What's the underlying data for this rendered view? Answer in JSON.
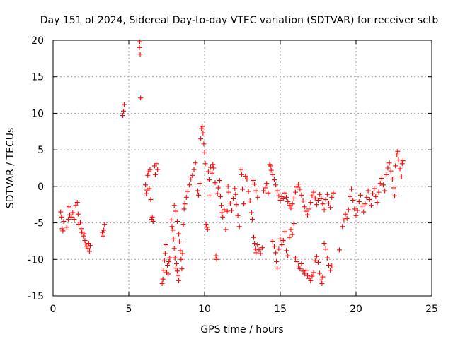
{
  "chart_data": {
    "type": "scatter",
    "title": "Day 151 of 2024, Sidereal Day-to-day VTEC variation (SDTVAR) for receiver sctb",
    "xlabel": "GPS time / hours",
    "ylabel": "SDTVAR / TECUs",
    "xlim": [
      0,
      25
    ],
    "ylim": [
      -15,
      20
    ],
    "xticks": [
      0,
      5,
      10,
      15,
      20,
      25
    ],
    "xtick_labels": [
      "0",
      "5",
      "10",
      "15",
      "20",
      "25"
    ],
    "yticks": [
      -15,
      -10,
      -5,
      0,
      5,
      10,
      15,
      20
    ],
    "ytick_labels": [
      "-15",
      "-10",
      "-5",
      "0",
      "5",
      "10",
      "15",
      "20"
    ],
    "grid": true,
    "marker": "plus",
    "series": [
      {
        "name": "SDTVAR",
        "color": "#ff0000",
        "points": [
          [
            0.5,
            -3.5
          ],
          [
            0.55,
            -4.2
          ],
          [
            0.6,
            -5.8
          ],
          [
            0.65,
            -6.1
          ],
          [
            0.7,
            -4.8
          ],
          [
            0.9,
            -5.6
          ],
          [
            1.0,
            -4.5
          ],
          [
            1.05,
            -2.8
          ],
          [
            1.1,
            -3.9
          ],
          [
            1.2,
            -4.2
          ],
          [
            1.3,
            -3.6
          ],
          [
            1.4,
            -4.5
          ],
          [
            1.5,
            -2.6
          ],
          [
            1.6,
            -2.2
          ],
          [
            1.65,
            -3.8
          ],
          [
            1.7,
            -5.2
          ],
          [
            1.8,
            -4.9
          ],
          [
            1.85,
            -5.8
          ],
          [
            1.9,
            -6.3
          ],
          [
            2.0,
            -6.8
          ],
          [
            2.05,
            -6.5
          ],
          [
            2.1,
            -7.4
          ],
          [
            2.15,
            -7.9
          ],
          [
            2.2,
            -8.2
          ],
          [
            2.3,
            -8.5
          ],
          [
            2.35,
            -7.8
          ],
          [
            2.4,
            -8.9
          ],
          [
            2.45,
            -8.1
          ],
          [
            3.25,
            -6.3
          ],
          [
            3.3,
            -6.8
          ],
          [
            3.35,
            -6.0
          ],
          [
            3.4,
            -5.2
          ],
          [
            4.6,
            9.7
          ],
          [
            4.65,
            10.3
          ],
          [
            4.7,
            11.2
          ],
          [
            5.7,
            19.0
          ],
          [
            5.72,
            19.8
          ],
          [
            5.75,
            18.1
          ],
          [
            5.78,
            12.1
          ],
          [
            6.1,
            0.2
          ],
          [
            6.15,
            -1.0
          ],
          [
            6.2,
            -0.5
          ],
          [
            6.25,
            1.5
          ],
          [
            6.3,
            2.0
          ],
          [
            6.35,
            -0.3
          ],
          [
            6.4,
            2.3
          ],
          [
            6.45,
            -1.8
          ],
          [
            6.5,
            -4.5
          ],
          [
            6.55,
            -4.2
          ],
          [
            6.6,
            -4.8
          ],
          [
            6.7,
            2.8
          ],
          [
            6.75,
            1.6
          ],
          [
            6.8,
            3.1
          ],
          [
            6.9,
            2.3
          ],
          [
            7.2,
            -13.3
          ],
          [
            7.25,
            -12.7
          ],
          [
            7.3,
            -11.5
          ],
          [
            7.35,
            -10.2
          ],
          [
            7.4,
            -9.2
          ],
          [
            7.45,
            -8.0
          ],
          [
            7.5,
            -11.8
          ],
          [
            7.55,
            -10.8
          ],
          [
            7.6,
            -12.0
          ],
          [
            7.65,
            -10.3
          ],
          [
            7.7,
            -9.8
          ],
          [
            7.8,
            -4.6
          ],
          [
            7.85,
            -5.5
          ],
          [
            7.9,
            -6.0
          ],
          [
            7.95,
            -7.2
          ],
          [
            8.0,
            -8.5
          ],
          [
            8.05,
            -9.8
          ],
          [
            8.1,
            -11.2
          ],
          [
            8.15,
            -10.6
          ],
          [
            8.2,
            -11.6
          ],
          [
            8.25,
            -12.2
          ],
          [
            8.3,
            -12.9
          ],
          [
            8.0,
            -2.6
          ],
          [
            8.1,
            -3.4
          ],
          [
            8.2,
            -4.8
          ],
          [
            8.3,
            -6.5
          ],
          [
            8.35,
            -7.6
          ],
          [
            8.4,
            -8.8
          ],
          [
            8.45,
            -10.0
          ],
          [
            8.5,
            -11.3
          ],
          [
            8.55,
            -9.2
          ],
          [
            8.6,
            -5.2
          ],
          [
            8.65,
            -3.1
          ],
          [
            8.7,
            -2.4
          ],
          [
            8.8,
            -1.5
          ],
          [
            8.9,
            -0.7
          ],
          [
            9.0,
            0.2
          ],
          [
            9.1,
            1.0
          ],
          [
            9.2,
            1.5
          ],
          [
            9.3,
            2.3
          ],
          [
            9.4,
            3.2
          ],
          [
            9.55,
            -0.6
          ],
          [
            9.6,
            -1.2
          ],
          [
            9.7,
            0.4
          ],
          [
            9.75,
            6.5
          ],
          [
            9.8,
            7.9
          ],
          [
            9.85,
            8.2
          ],
          [
            9.9,
            7.3
          ],
          [
            9.95,
            5.8
          ],
          [
            10.0,
            4.6
          ],
          [
            10.05,
            3.1
          ],
          [
            10.1,
            -5.2
          ],
          [
            10.15,
            -5.6
          ],
          [
            10.2,
            -5.9
          ],
          [
            10.25,
            2.0
          ],
          [
            10.3,
            0.9
          ],
          [
            10.35,
            -1.3
          ],
          [
            10.4,
            2.6
          ],
          [
            10.5,
            1.8
          ],
          [
            10.55,
            3.0
          ],
          [
            10.6,
            2.5
          ],
          [
            10.7,
            0.5
          ],
          [
            10.75,
            -9.5
          ],
          [
            10.8,
            -10.0
          ],
          [
            10.85,
            -1.0
          ],
          [
            10.9,
            -0.2
          ],
          [
            11.0,
            0.8
          ],
          [
            11.05,
            -1.4
          ],
          [
            11.1,
            -2.6
          ],
          [
            11.15,
            -3.6
          ],
          [
            11.2,
            -4.2
          ],
          [
            11.3,
            -3.2
          ],
          [
            11.4,
            -5.9
          ],
          [
            11.5,
            -3.4
          ],
          [
            11.55,
            0.0
          ],
          [
            11.6,
            -0.8
          ],
          [
            11.7,
            -2.3
          ],
          [
            11.8,
            -3.3
          ],
          [
            11.9,
            -1.7
          ],
          [
            12.0,
            -0.3
          ],
          [
            12.05,
            -1.1
          ],
          [
            12.1,
            -2.5
          ],
          [
            12.2,
            -4.0
          ],
          [
            12.3,
            -5.5
          ],
          [
            12.4,
            2.3
          ],
          [
            12.45,
            1.6
          ],
          [
            12.5,
            -0.4
          ],
          [
            12.6,
            -2.4
          ],
          [
            12.7,
            1.4
          ],
          [
            12.8,
            1.0
          ],
          [
            12.9,
            -0.7
          ],
          [
            13.0,
            -2.0
          ],
          [
            13.1,
            -3.6
          ],
          [
            13.15,
            -4.5
          ],
          [
            13.2,
            0.8
          ],
          [
            13.3,
            0.3
          ],
          [
            13.4,
            -0.6
          ],
          [
            13.5,
            -1.5
          ],
          [
            13.25,
            -7.0
          ],
          [
            13.3,
            -7.8
          ],
          [
            13.35,
            -8.6
          ],
          [
            13.4,
            -9.1
          ],
          [
            13.5,
            -8.0
          ],
          [
            13.6,
            -8.7
          ],
          [
            13.7,
            -9.2
          ],
          [
            13.8,
            -8.4
          ],
          [
            13.9,
            -0.6
          ],
          [
            14.0,
            -0.2
          ],
          [
            14.1,
            0.4
          ],
          [
            14.2,
            -0.9
          ],
          [
            14.3,
            3.0
          ],
          [
            14.35,
            2.8
          ],
          [
            14.4,
            2.2
          ],
          [
            14.5,
            1.6
          ],
          [
            14.6,
            0.9
          ],
          [
            14.7,
            0.2
          ],
          [
            14.8,
            -0.6
          ],
          [
            14.9,
            -1.3
          ],
          [
            14.5,
            -7.5
          ],
          [
            14.6,
            -8.2
          ],
          [
            14.7,
            -9.1
          ],
          [
            14.75,
            -10.3
          ],
          [
            14.8,
            -11.2
          ],
          [
            14.9,
            -8.6
          ],
          [
            15.0,
            -7.2
          ],
          [
            15.1,
            -8.0
          ],
          [
            15.2,
            -7.4
          ],
          [
            15.3,
            -6.2
          ],
          [
            15.4,
            -8.8
          ],
          [
            15.5,
            -9.5
          ],
          [
            15.6,
            -7.0
          ],
          [
            15.7,
            -5.9
          ],
          [
            15.8,
            -6.6
          ],
          [
            15.9,
            -5.1
          ],
          [
            15.0,
            -1.9
          ],
          [
            15.1,
            -1.4
          ],
          [
            15.2,
            -1.7
          ],
          [
            15.3,
            -0.9
          ],
          [
            15.4,
            -1.5
          ],
          [
            15.5,
            -2.1
          ],
          [
            15.6,
            -2.6
          ],
          [
            15.7,
            -3.0
          ],
          [
            15.8,
            -2.4
          ],
          [
            15.9,
            -1.6
          ],
          [
            16.0,
            -0.8
          ],
          [
            16.1,
            -0.1
          ],
          [
            16.2,
            0.3
          ],
          [
            16.3,
            -0.4
          ],
          [
            16.4,
            -1.2
          ],
          [
            16.5,
            -2.0
          ],
          [
            16.6,
            -2.8
          ],
          [
            16.7,
            -3.4
          ],
          [
            16.8,
            -3.9
          ],
          [
            16.9,
            -3.1
          ],
          [
            17.0,
            -2.2
          ],
          [
            17.1,
            -1.3
          ],
          [
            17.2,
            -0.8
          ],
          [
            17.3,
            -1.6
          ],
          [
            17.4,
            -2.5
          ],
          [
            17.5,
            -1.9
          ],
          [
            17.6,
            -1.1
          ],
          [
            17.7,
            -1.7
          ],
          [
            17.8,
            -2.4
          ],
          [
            17.9,
            -3.2
          ],
          [
            18.0,
            -1.8
          ],
          [
            18.1,
            -1.1
          ],
          [
            18.2,
            -2.3
          ],
          [
            18.3,
            -2.9
          ],
          [
            18.4,
            -1.5
          ],
          [
            18.5,
            -0.9
          ],
          [
            16.0,
            -9.8
          ],
          [
            16.1,
            -10.3
          ],
          [
            16.2,
            -10.9
          ],
          [
            16.3,
            -11.3
          ],
          [
            16.4,
            -10.6
          ],
          [
            16.5,
            -11.6
          ],
          [
            16.6,
            -12.0
          ],
          [
            16.7,
            -11.5
          ],
          [
            16.8,
            -12.2
          ],
          [
            16.9,
            -12.6
          ],
          [
            17.0,
            -12.9
          ],
          [
            17.1,
            -12.3
          ],
          [
            17.2,
            -11.8
          ],
          [
            17.3,
            -10.2
          ],
          [
            17.4,
            -9.6
          ],
          [
            17.5,
            -10.4
          ],
          [
            17.6,
            -11.9
          ],
          [
            17.7,
            -12.8
          ],
          [
            17.75,
            -13.3
          ],
          [
            17.8,
            -12.4
          ],
          [
            17.9,
            -7.8
          ],
          [
            18.0,
            -8.6
          ],
          [
            18.1,
            -9.8
          ],
          [
            18.2,
            -10.8
          ],
          [
            18.3,
            -11.5
          ],
          [
            18.4,
            -10.9
          ],
          [
            18.9,
            -8.7
          ],
          [
            19.1,
            -5.5
          ],
          [
            19.2,
            -4.6
          ],
          [
            19.3,
            -3.8
          ],
          [
            19.4,
            -4.4
          ],
          [
            19.5,
            -3.2
          ],
          [
            19.6,
            -1.4
          ],
          [
            19.7,
            -0.4
          ],
          [
            19.8,
            -1.9
          ],
          [
            19.9,
            -3.1
          ],
          [
            20.0,
            -4.0
          ],
          [
            20.1,
            -3.3
          ],
          [
            20.2,
            -2.1
          ],
          [
            20.3,
            -1.2
          ],
          [
            20.4,
            -2.7
          ],
          [
            20.5,
            -3.5
          ],
          [
            20.6,
            -2.4
          ],
          [
            20.7,
            -1.5
          ],
          [
            20.8,
            -0.6
          ],
          [
            20.9,
            -1.8
          ],
          [
            21.0,
            -2.6
          ],
          [
            21.1,
            -1.0
          ],
          [
            21.2,
            -0.3
          ],
          [
            21.3,
            -1.4
          ],
          [
            21.4,
            -2.2
          ],
          [
            21.5,
            -0.8
          ],
          [
            21.6,
            0.4
          ],
          [
            21.7,
            1.1
          ],
          [
            21.8,
            0.2
          ],
          [
            21.9,
            -0.6
          ],
          [
            22.0,
            1.6
          ],
          [
            22.1,
            2.5
          ],
          [
            22.2,
            3.2
          ],
          [
            22.3,
            2.1
          ],
          [
            22.4,
            1.0
          ],
          [
            22.5,
            -0.2
          ],
          [
            22.55,
            -1.3
          ],
          [
            22.6,
            2.8
          ],
          [
            22.7,
            4.3
          ],
          [
            22.75,
            4.8
          ],
          [
            22.8,
            3.6
          ],
          [
            22.9,
            2.4
          ],
          [
            23.0,
            1.3
          ],
          [
            23.05,
            3.1
          ],
          [
            23.1,
            3.5
          ]
        ]
      }
    ]
  }
}
